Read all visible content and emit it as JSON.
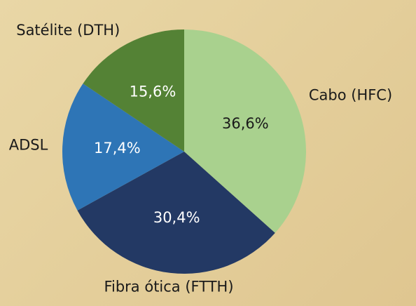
{
  "chart_data": {
    "type": "pie",
    "categories": [
      "Cabo (HFC)",
      "Fibra ótica (FTTH)",
      "ADSL",
      "Satélite (DTH)"
    ],
    "values": [
      36.6,
      30.4,
      17.4,
      15.6
    ],
    "value_labels": [
      "36,6%",
      "30,4%",
      "17,4%",
      "15,6%"
    ],
    "colors": [
      "#a9d18e",
      "#233964",
      "#2e75b6",
      "#548235"
    ]
  }
}
